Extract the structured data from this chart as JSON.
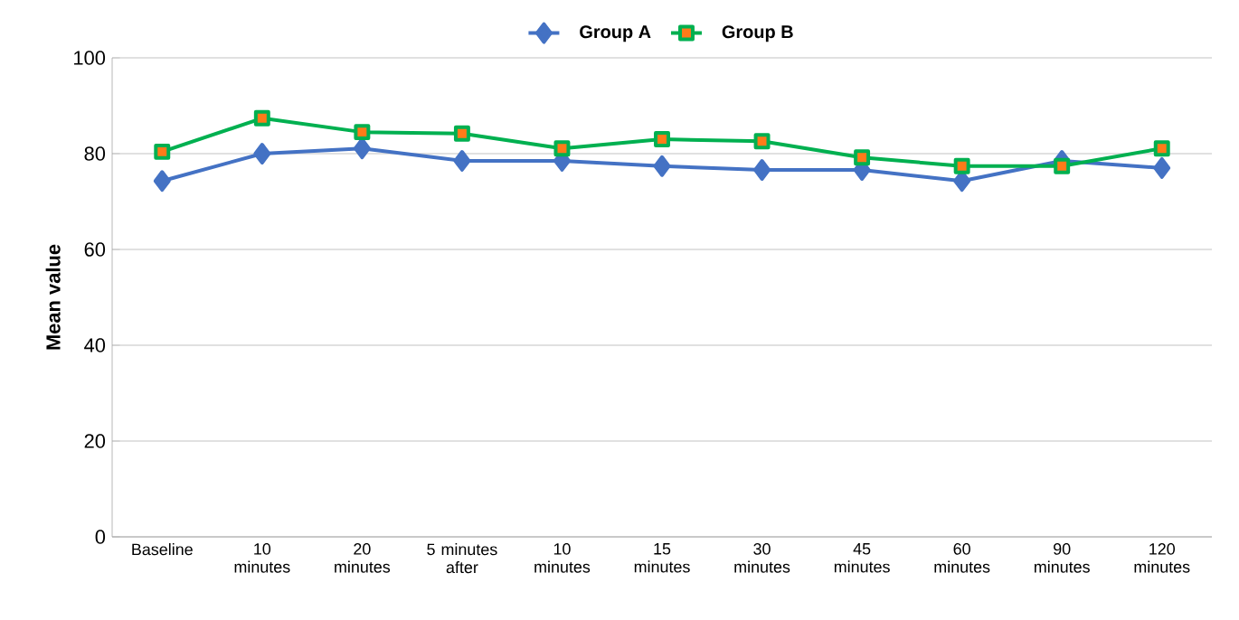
{
  "chart_data": {
    "type": "line",
    "ylabel": "Mean value",
    "categories": [
      "Baseline",
      "10 minutes",
      "20 minutes",
      "5 minutes after",
      "10 minutes",
      "15 minutes",
      "30 minutes",
      "45 minutes",
      "60 minutes",
      "90 minutes",
      "120 minutes"
    ],
    "series": [
      {
        "name": "Group A",
        "color": "#4472c4",
        "marker": "diamond",
        "values": [
          74.3,
          80,
          81.1,
          78.5,
          78.5,
          77.4,
          76.6,
          76.6,
          74.3,
          78.5,
          77
        ]
      },
      {
        "name": "Group B",
        "color": "#00b050",
        "marker": "square",
        "values": [
          80.4,
          87.4,
          84.5,
          84.2,
          81.1,
          83,
          82.6,
          79.2,
          77.4,
          77.4,
          81.1
        ]
      }
    ],
    "ylim": [
      0,
      100
    ],
    "yticks": [
      0,
      20,
      40,
      60,
      80,
      100
    ],
    "grid": "y",
    "legend": "top",
    "line_style": "solid"
  }
}
